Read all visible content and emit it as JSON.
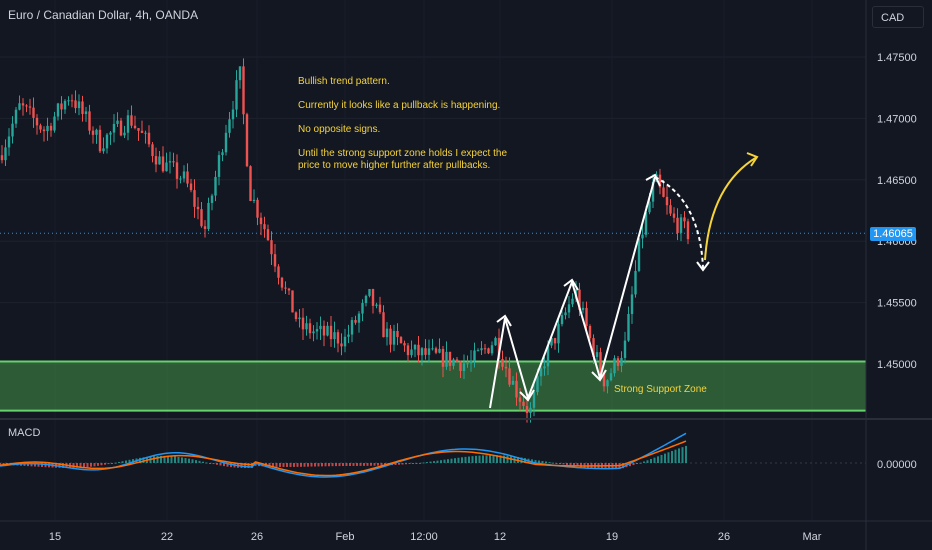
{
  "header": {
    "title": "Euro / Canadian Dollar, 4h, OANDA",
    "currency": "CAD"
  },
  "annotations": {
    "note1": "Bullish trend pattern.",
    "note2": "Currently it looks like a pullback is happening.",
    "note3": "No opposite signs.",
    "note4_line1": "Until the strong support zone holds I expect the",
    "note4_line2": "price to move higher further after pullbacks.",
    "zone_label": "Strong Support Zone"
  },
  "indicator": {
    "name": "MACD"
  },
  "last_price": "1.46065",
  "colors": {
    "up": "#26a69a",
    "down": "#ef5350",
    "zone": "#4caf50",
    "note": "#f5d33b",
    "macd": "#2196f3",
    "signal": "#ff6d00",
    "price": "#2196f3"
  },
  "chart_data": [
    {
      "type": "candlestick",
      "title": "Euro / Canadian Dollar, 4h, OANDA",
      "ylim": [
        1.4455,
        1.479
      ],
      "y_ticks": [
        "1.47500",
        "1.47000",
        "1.46500",
        "1.46000",
        "1.45500",
        "1.45000"
      ],
      "x_ticks": [
        "15",
        "22",
        "26",
        "Feb",
        "12:00",
        "12",
        "19",
        "26",
        "Mar"
      ],
      "last_price": 1.46065,
      "support_zone": [
        1.4462,
        1.4502
      ],
      "series": [
        {
          "name": "EURCAD",
          "approx_close_path": [
            [
              0,
              1.467
            ],
            [
              20,
              1.471
            ],
            [
              45,
              1.469
            ],
            [
              70,
              1.472
            ],
            [
              100,
              1.468
            ],
            [
              130,
              1.47
            ],
            [
              160,
              1.4665
            ],
            [
              185,
              1.465
            ],
            [
              205,
              1.461
            ],
            [
              225,
              1.469
            ],
            [
              240,
              1.4735
            ],
            [
              250,
              1.464
            ],
            [
              265,
              1.461
            ],
            [
              285,
              1.456
            ],
            [
              300,
              1.453
            ],
            [
              320,
              1.4525
            ],
            [
              345,
              1.452
            ],
            [
              370,
              1.4555
            ],
            [
              385,
              1.4525
            ],
            [
              410,
              1.451
            ],
            [
              440,
              1.4505
            ],
            [
              470,
              1.45
            ],
            [
              495,
              1.452
            ],
            [
              515,
              1.448
            ],
            [
              530,
              1.446
            ],
            [
              545,
              1.4505
            ],
            [
              560,
              1.453
            ],
            [
              575,
              1.456
            ],
            [
              590,
              1.452
            ],
            [
              605,
              1.4485
            ],
            [
              625,
              1.4515
            ],
            [
              640,
              1.46
            ],
            [
              655,
              1.465
            ],
            [
              670,
              1.462
            ],
            [
              690,
              1.4605
            ]
          ]
        }
      ]
    },
    {
      "type": "line",
      "title": "MACD",
      "y_ticks": [
        "0.00000"
      ]
    }
  ]
}
